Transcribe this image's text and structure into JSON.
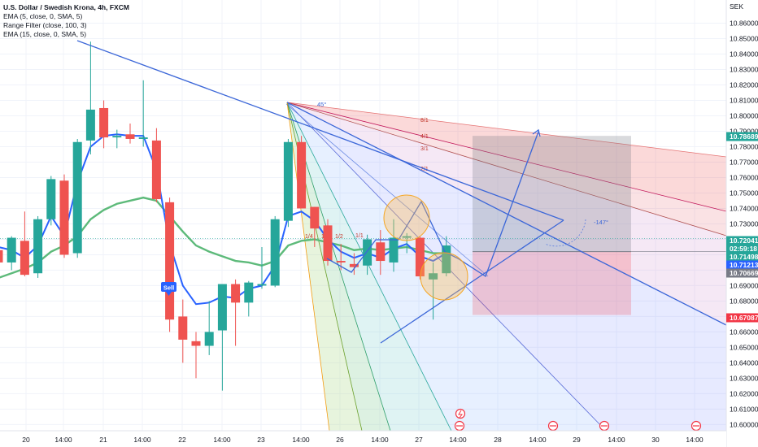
{
  "legend": {
    "title": "U.S. Dollar / Swedish Krona, 4h, FXCM",
    "lines": [
      "EMA (5, close, 0, SMA, 5)",
      "Range Filter (close, 100, 3)",
      "EMA (15, close, 0, SMA, 5)"
    ]
  },
  "colors": {
    "up": "#26a69a",
    "down": "#ef5350",
    "ema5": "#2962ff",
    "ema15": "#5dba7a",
    "grid": "#f0f3fa",
    "fan_line": "#3c67d8"
  },
  "chart_data": {
    "type": "candlestick",
    "symbol": "USDSEK",
    "timeframe": "4h",
    "currency": "SEK",
    "y_axis": {
      "ticks": [
        "10.86000",
        "10.85000",
        "10.84000",
        "10.83000",
        "10.82000",
        "10.81000",
        "10.80000",
        "10.79000",
        "10.78000",
        "10.77000",
        "10.76000",
        "10.75000",
        "10.74000",
        "10.73000",
        "10.72000",
        "10.71000",
        "10.70000",
        "10.69000",
        "10.68000",
        "10.67000",
        "10.66000",
        "10.65000",
        "10.64000",
        "10.63000",
        "10.62000",
        "10.61000",
        "10.60000"
      ],
      "range": [
        10.596,
        10.875
      ]
    },
    "x_axis": {
      "labels": [
        "20",
        "14:00",
        "21",
        "14:00",
        "22",
        "14:00",
        "23",
        "14:00",
        "26",
        "14:00",
        "27",
        "14:00",
        "28",
        "14:00",
        "29",
        "14:00",
        "30",
        "14:00"
      ]
    },
    "candles": [
      {
        "o": 10.713,
        "h": 10.72,
        "l": 10.704,
        "c": 10.705
      },
      {
        "o": 10.705,
        "h": 10.722,
        "l": 10.7,
        "c": 10.721
      },
      {
        "o": 10.719,
        "h": 10.738,
        "l": 10.696,
        "c": 10.697
      },
      {
        "o": 10.698,
        "h": 10.735,
        "l": 10.695,
        "c": 10.733
      },
      {
        "o": 10.733,
        "h": 10.761,
        "l": 10.729,
        "c": 10.759
      },
      {
        "o": 10.758,
        "h": 10.762,
        "l": 10.708,
        "c": 10.71
      },
      {
        "o": 10.711,
        "h": 10.785,
        "l": 10.708,
        "c": 10.783
      },
      {
        "o": 10.784,
        "h": 10.848,
        "l": 10.775,
        "c": 10.804
      },
      {
        "o": 10.805,
        "h": 10.81,
        "l": 10.779,
        "c": 10.786
      },
      {
        "o": 10.786,
        "h": 10.791,
        "l": 10.779,
        "c": 10.787
      },
      {
        "o": 10.788,
        "h": 10.795,
        "l": 10.782,
        "c": 10.785
      },
      {
        "o": 10.785,
        "h": 10.823,
        "l": 10.78,
        "c": 10.786
      },
      {
        "o": 10.784,
        "h": 10.792,
        "l": 10.744,
        "c": 10.746
      },
      {
        "o": 10.744,
        "h": 10.747,
        "l": 10.66,
        "c": 10.668
      },
      {
        "o": 10.67,
        "h": 10.681,
        "l": 10.64,
        "c": 10.655
      },
      {
        "o": 10.654,
        "h": 10.66,
        "l": 10.63,
        "c": 10.651
      },
      {
        "o": 10.651,
        "h": 10.68,
        "l": 10.645,
        "c": 10.66
      },
      {
        "o": 10.661,
        "h": 10.69,
        "l": 10.622,
        "c": 10.691
      },
      {
        "o": 10.691,
        "h": 10.694,
        "l": 10.651,
        "c": 10.679
      },
      {
        "o": 10.679,
        "h": 10.693,
        "l": 10.67,
        "c": 10.692
      },
      {
        "o": 10.69,
        "h": 10.715,
        "l": 10.688,
        "c": 10.691
      },
      {
        "o": 10.69,
        "h": 10.735,
        "l": 10.689,
        "c": 10.733
      },
      {
        "o": 10.732,
        "h": 10.785,
        "l": 10.728,
        "c": 10.783
      },
      {
        "o": 10.783,
        "h": 10.787,
        "l": 10.74,
        "c": 10.74
      },
      {
        "o": 10.741,
        "h": 10.741,
        "l": 10.715,
        "c": 10.727
      },
      {
        "o": 10.729,
        "h": 10.733,
        "l": 10.703,
        "c": 10.706
      },
      {
        "o": 10.706,
        "h": 10.717,
        "l": 10.7,
        "c": 10.705
      },
      {
        "o": 10.704,
        "h": 10.711,
        "l": 10.697,
        "c": 10.702
      },
      {
        "o": 10.703,
        "h": 10.723,
        "l": 10.697,
        "c": 10.72
      },
      {
        "o": 10.718,
        "h": 10.726,
        "l": 10.697,
        "c": 10.706
      },
      {
        "o": 10.705,
        "h": 10.733,
        "l": 10.699,
        "c": 10.721
      },
      {
        "o": 10.721,
        "h": 10.724,
        "l": 10.711,
        "c": 10.722
      },
      {
        "o": 10.721,
        "h": 10.722,
        "l": 10.694,
        "c": 10.696
      },
      {
        "o": 10.694,
        "h": 10.705,
        "l": 10.668,
        "c": 10.698
      },
      {
        "o": 10.698,
        "h": 10.722,
        "l": 10.696,
        "c": 10.716
      }
    ],
    "ema5": [
      10.715,
      10.713,
      10.708,
      10.716,
      10.735,
      10.722,
      10.757,
      10.78,
      10.787,
      10.788,
      10.787,
      10.787,
      10.765,
      10.717,
      10.69,
      10.678,
      10.679,
      10.683,
      10.682,
      10.688,
      10.69,
      10.703,
      10.735,
      10.738,
      10.732,
      10.72,
      10.712,
      10.708,
      10.711,
      10.708,
      10.714,
      10.717,
      10.709,
      10.706,
      10.711
    ],
    "ema15": [
      10.695,
      10.698,
      10.701,
      10.705,
      10.712,
      10.716,
      10.722,
      10.733,
      10.739,
      10.743,
      10.745,
      10.747,
      10.745,
      10.735,
      10.725,
      10.716,
      10.712,
      10.709,
      10.706,
      10.705,
      10.703,
      10.706,
      10.716,
      10.719,
      10.72,
      10.718,
      10.716,
      10.713,
      10.714,
      10.713,
      10.714,
      10.715,
      10.713,
      10.711,
      10.711
    ],
    "price_tags": [
      {
        "value": "10.78689",
        "color": "#26a69a"
      },
      {
        "value": "10.72041",
        "color": "#26a69a"
      },
      {
        "value": "02:59:18",
        "color": "#26a69a"
      },
      {
        "value": "10.71498",
        "color": "#26a69a"
      },
      {
        "value": "10.71213",
        "color": "#2962ff"
      },
      {
        "value": "10.70669",
        "color": "#787b86"
      },
      {
        "value": "10.67087",
        "color": "#f23645"
      }
    ],
    "position": {
      "side": "short",
      "entry": 10.712,
      "target": 10.787,
      "stop": 10.671
    },
    "annotations": {
      "sell_label": "Sell",
      "angle_top": "45°",
      "angle_right": "-147°",
      "fan_ratios": [
        "8/1",
        "4/1",
        "3/1",
        "2/1",
        "1/4",
        "1/3",
        "1/2",
        "1/1"
      ]
    }
  }
}
